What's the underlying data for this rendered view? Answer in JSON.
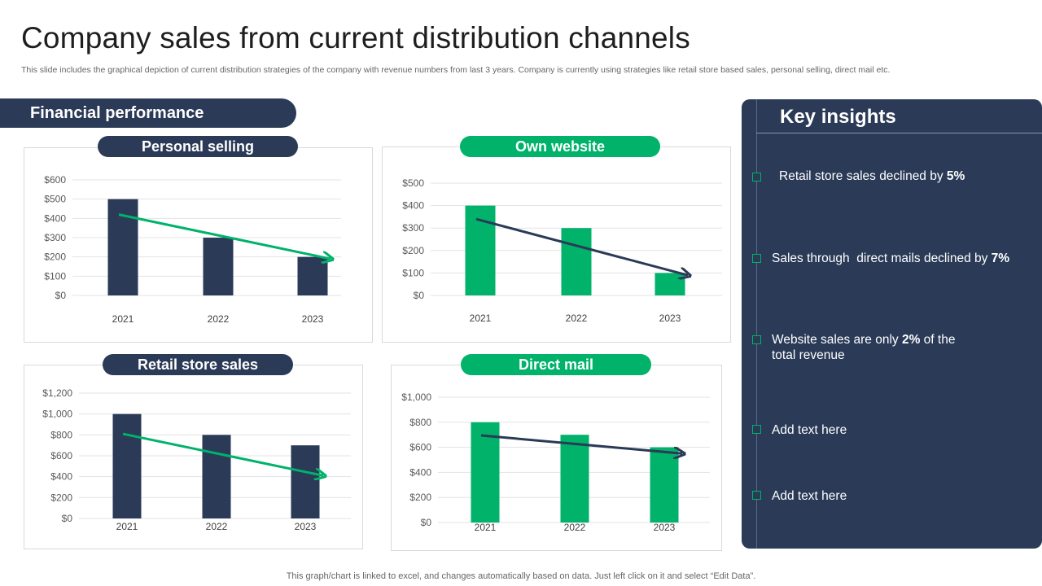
{
  "header": {
    "title": "Company sales from current distribution channels",
    "subtitle": "This slide includes the graphical depiction of current distribution strategies of the company with revenue numbers from last 3 years. Company is currently using strategies like retail store based sales, personal selling, direct mail etc."
  },
  "financial_banner": "Financial performance",
  "colors": {
    "navy": "#2a3a57",
    "green": "#00b26a"
  },
  "chart_data": [
    {
      "id": "personal",
      "type": "bar",
      "title": "Personal selling",
      "categories": [
        "2021",
        "2022",
        "2023"
      ],
      "values": [
        500,
        300,
        200
      ],
      "yticks": [
        "$0",
        "$100",
        "$200",
        "$300",
        "$400",
        "$500",
        "$600"
      ],
      "ylim": [
        0,
        600
      ],
      "bar_color": "#2a3a57",
      "trend_color": "#00b26a",
      "trend": [
        420,
        190
      ]
    },
    {
      "id": "website",
      "type": "bar",
      "title": "Own website",
      "categories": [
        "2021",
        "2022",
        "2023"
      ],
      "values": [
        400,
        300,
        100
      ],
      "yticks": [
        "$0",
        "$100",
        "$200",
        "$300",
        "$400",
        "$500"
      ],
      "ylim": [
        0,
        500
      ],
      "bar_color": "#00b26a",
      "trend_color": "#2a3a57",
      "trend": [
        340,
        90
      ]
    },
    {
      "id": "retail",
      "type": "bar",
      "title": "Retail store sales",
      "categories": [
        "2021",
        "2022",
        "2023"
      ],
      "values": [
        1000,
        800,
        700
      ],
      "yticks": [
        "$0",
        "$200",
        "$400",
        "$600",
        "$800",
        "$1,000",
        "$1,200"
      ],
      "ylim": [
        0,
        1200
      ],
      "bar_color": "#2a3a57",
      "trend_color": "#00b26a",
      "trend": [
        810,
        410
      ]
    },
    {
      "id": "direct",
      "type": "bar",
      "title": "Direct mail",
      "categories": [
        "2021",
        "2022",
        "2023"
      ],
      "values": [
        800,
        700,
        600
      ],
      "yticks": [
        "$0",
        "$200",
        "$400",
        "$600",
        "$800",
        "$1,000"
      ],
      "ylim": [
        0,
        1000
      ],
      "bar_color": "#00b26a",
      "trend_color": "#2a3a57",
      "trend": [
        695,
        550
      ]
    }
  ],
  "insights": {
    "title": "Key insights",
    "items": [
      {
        "pre": "Retail store sales declined by ",
        "bold": "5%",
        "post": "",
        "line2": ""
      },
      {
        "pre": "Sales through  direct mails declined by ",
        "bold": "7%",
        "post": "",
        "line2": ""
      },
      {
        "pre": "Website sales are only ",
        "bold": "2%",
        "post": " of the",
        "line2": "total revenue"
      },
      {
        "pre": "Add text here",
        "bold": "",
        "post": "",
        "line2": ""
      },
      {
        "pre": "Add text here",
        "bold": "",
        "post": "",
        "line2": ""
      }
    ]
  },
  "footer": "This graph/chart is linked to excel,  and changes automatically based on data. Just left click on it and select “Edit Data”."
}
